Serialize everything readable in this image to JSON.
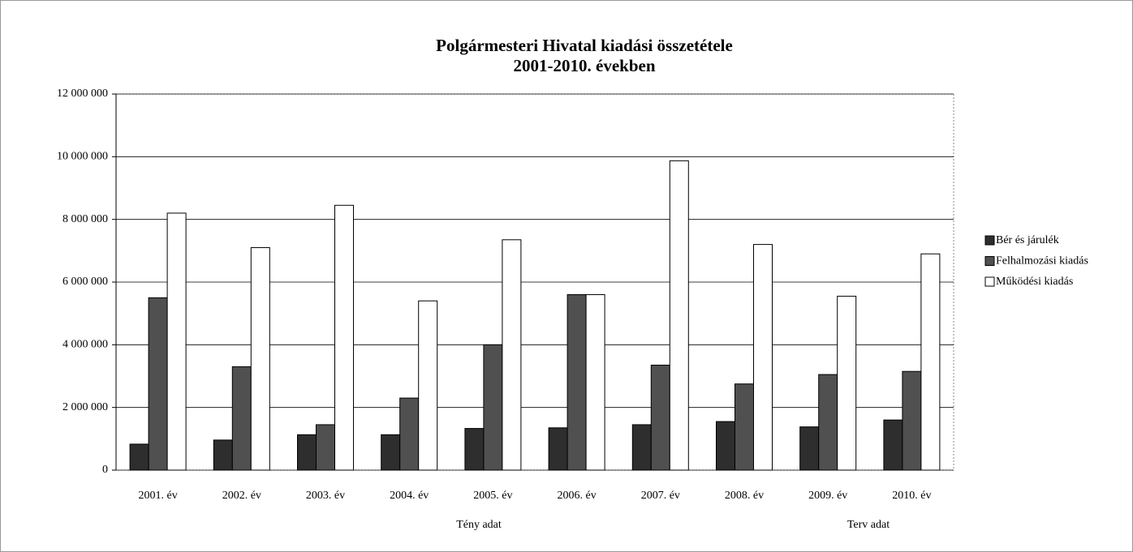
{
  "chart_data": {
    "type": "bar",
    "title": "Polgármesteri Hivatal kiadási összetétele",
    "subtitle": "2001-2010. években",
    "categories": [
      "2001. év",
      "2002. év",
      "2003. év",
      "2004. év",
      "2005. év",
      "2006. év",
      "2007. év",
      "2008. év",
      "2009. év",
      "2010. év"
    ],
    "series": [
      {
        "name": "Bér és járulék",
        "color": "#2e2e2e",
        "values": [
          830000,
          960000,
          1130000,
          1130000,
          1330000,
          1350000,
          1450000,
          1550000,
          1380000,
          1600000
        ]
      },
      {
        "name": "Felhalmozási kiadás",
        "color": "#505050",
        "values": [
          5500000,
          3300000,
          1450000,
          2300000,
          4000000,
          5600000,
          3350000,
          2750000,
          3050000,
          3150000
        ]
      },
      {
        "name": "Működési kiadás",
        "color": "#ffffff",
        "values": [
          8200000,
          7100000,
          8450000,
          5400000,
          7350000,
          5600000,
          9870000,
          7200000,
          5550000,
          6900000
        ]
      }
    ],
    "annotations": [
      "Tény adat",
      "Terv adat"
    ],
    "ylim": [
      0,
      12000000
    ],
    "yticks": [
      {
        "value": 0,
        "label": "0"
      },
      {
        "value": 2000000,
        "label": "2 000 000"
      },
      {
        "value": 4000000,
        "label": "4 000 000"
      },
      {
        "value": 6000000,
        "label": "6 000 000"
      },
      {
        "value": 8000000,
        "label": "8 000 000"
      },
      {
        "value": 10000000,
        "label": "10 000 000"
      },
      {
        "value": 12000000,
        "label": "12 000 000"
      }
    ],
    "grid": true,
    "legend": "right"
  }
}
